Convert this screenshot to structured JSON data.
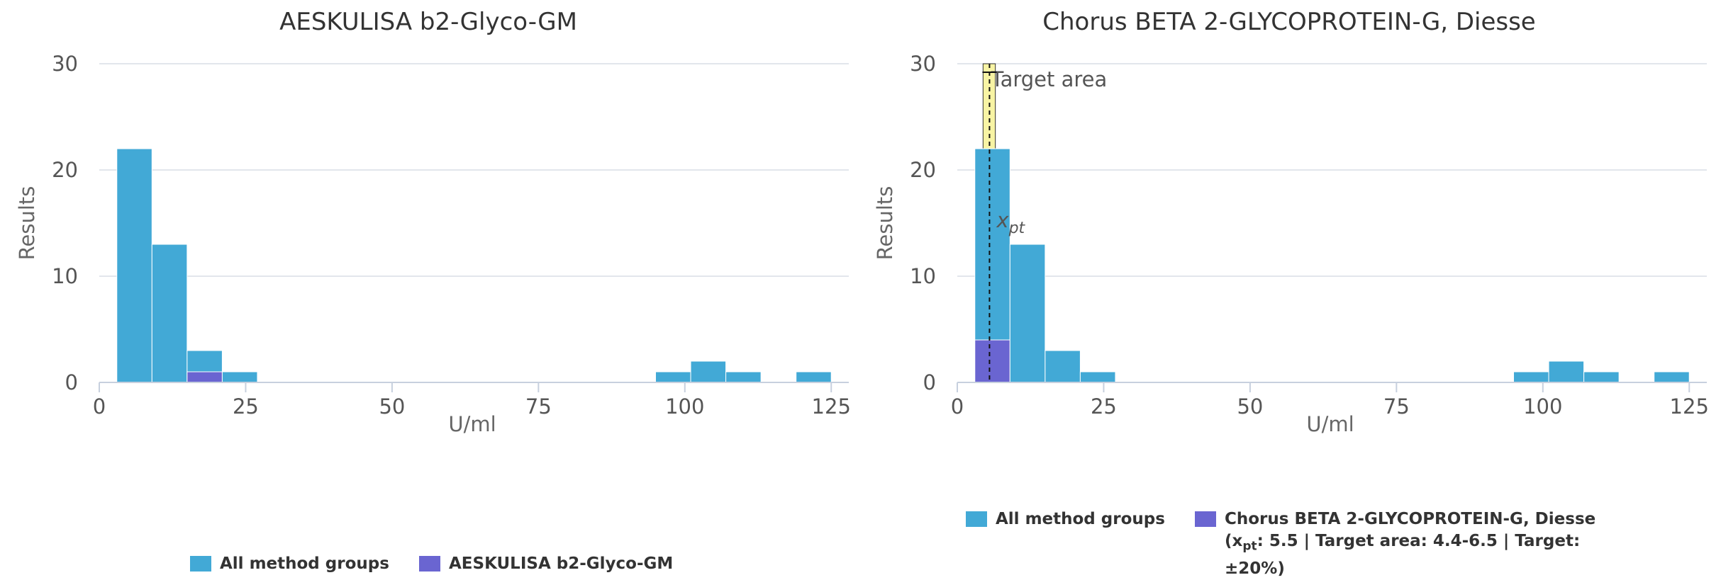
{
  "colors": {
    "all_groups": "#42a9d6",
    "method": "#6a65d1",
    "target_area": "#f8f4a4",
    "grid": "#d8dde6"
  },
  "chart_data": [
    {
      "type": "bar",
      "title": "AESKULISA b2-Glyco-GM",
      "xlabel": "U/ml",
      "ylabel": "Results",
      "xlim": [
        0,
        128
      ],
      "ylim": [
        0,
        30
      ],
      "x_ticks": [
        0,
        25,
        50,
        75,
        100,
        125
      ],
      "y_ticks": [
        0,
        10,
        20,
        30
      ],
      "grid": true,
      "bins": [
        {
          "from": 3,
          "to": 9,
          "all": 22,
          "method": 0
        },
        {
          "from": 9,
          "to": 15,
          "all": 13,
          "method": 0
        },
        {
          "from": 15,
          "to": 21,
          "all": 3,
          "method": 1
        },
        {
          "from": 21,
          "to": 27,
          "all": 1,
          "method": 0
        },
        {
          "from": 95,
          "to": 101,
          "all": 1,
          "method": 0
        },
        {
          "from": 101,
          "to": 107,
          "all": 2,
          "method": 0
        },
        {
          "from": 107,
          "to": 113,
          "all": 1,
          "method": 0
        },
        {
          "from": 119,
          "to": 125,
          "all": 1,
          "method": 0
        }
      ],
      "legend": {
        "position": "bottom",
        "items": [
          {
            "label": "All method groups",
            "color": "#42a9d6"
          },
          {
            "label": "AESKULISA b2-Glyco-GM",
            "color": "#6a65d1"
          }
        ]
      }
    },
    {
      "type": "bar",
      "title": "Chorus BETA 2-GLYCOPROTEIN-G, Diesse",
      "xlabel": "U/ml",
      "ylabel": "Results",
      "xlim": [
        0,
        128
      ],
      "ylim": [
        0,
        30
      ],
      "x_ticks": [
        0,
        25,
        50,
        75,
        100,
        125
      ],
      "y_ticks": [
        0,
        10,
        20,
        30
      ],
      "grid": true,
      "bins": [
        {
          "from": 3,
          "to": 9,
          "all": 22,
          "method": 4
        },
        {
          "from": 9,
          "to": 15,
          "all": 13,
          "method": 0
        },
        {
          "from": 15,
          "to": 21,
          "all": 3,
          "method": 0
        },
        {
          "from": 21,
          "to": 27,
          "all": 1,
          "method": 0
        },
        {
          "from": 95,
          "to": 101,
          "all": 1,
          "method": 0
        },
        {
          "from": 101,
          "to": 107,
          "all": 2,
          "method": 0
        },
        {
          "from": 107,
          "to": 113,
          "all": 1,
          "method": 0
        },
        {
          "from": 119,
          "to": 125,
          "all": 1,
          "method": 0
        }
      ],
      "target_area": {
        "from": 4.4,
        "to": 6.5,
        "label": "Target area"
      },
      "xpt": {
        "value": 5.5,
        "label_main": "x",
        "label_sub": "pt"
      },
      "legend": {
        "position": "bottom",
        "items": [
          {
            "label": "All method groups",
            "color": "#42a9d6"
          },
          {
            "label": "Chorus BETA 2-GLYCOPROTEIN-G, Diesse",
            "color": "#6a65d1"
          }
        ],
        "method_detail": {
          "xpt_prefix": "(x",
          "xpt_sub": "pt",
          "rest": ": 5.5 | Target area: 4.4-6.5 | Target: ±20%)"
        }
      }
    }
  ]
}
